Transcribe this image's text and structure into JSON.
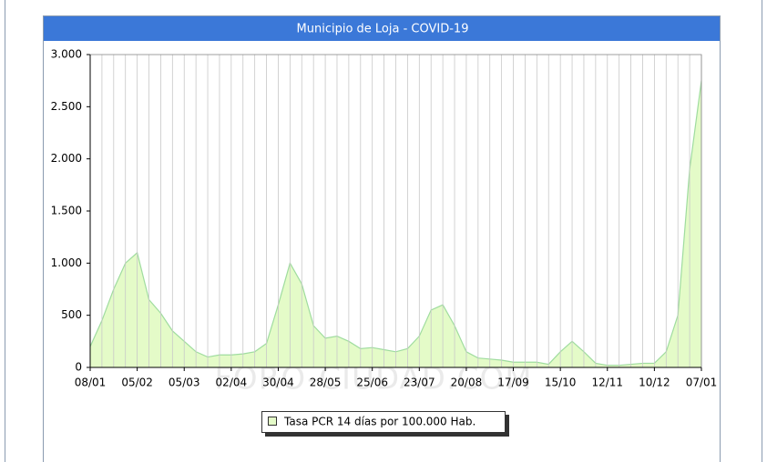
{
  "chart_data": {
    "type": "area",
    "title": "Municipio de Loja - COVID-19",
    "watermark": "FORO-CIUDAD.COM",
    "categories": [
      "08/01",
      null,
      null,
      null,
      "05/02",
      null,
      null,
      null,
      "05/03",
      null,
      null,
      null,
      "02/04",
      null,
      null,
      null,
      "30/04",
      null,
      null,
      null,
      "28/05",
      null,
      null,
      null,
      "25/06",
      null,
      null,
      null,
      "23/07",
      null,
      null,
      null,
      "20/08",
      null,
      null,
      null,
      "17/09",
      null,
      null,
      null,
      "15/10",
      null,
      null,
      null,
      "12/11",
      null,
      null,
      null,
      "10/12",
      null,
      null,
      null,
      "07/01"
    ],
    "series": [
      {
        "name": "Tasa PCR 14 días por 100.000 Hab.",
        "color": "#e4fbc8",
        "line_color": "#9fdc9f",
        "values": [
          200,
          450,
          750,
          1000,
          1100,
          650,
          520,
          350,
          250,
          150,
          100,
          120,
          120,
          130,
          150,
          230,
          600,
          1000,
          800,
          400,
          280,
          300,
          250,
          180,
          190,
          170,
          150,
          180,
          300,
          550,
          600,
          400,
          150,
          90,
          80,
          70,
          50,
          50,
          50,
          30,
          150,
          250,
          150,
          40,
          20,
          20,
          30,
          40,
          40,
          150,
          500,
          1900,
          2750
        ]
      }
    ],
    "ylim": [
      0,
      3000
    ],
    "yticks": [
      0,
      500,
      {
        "value": 1000,
        "label": "1.000"
      },
      {
        "value": 1500,
        "label": "1.500"
      },
      {
        "value": 2000,
        "label": "2.000"
      },
      {
        "value": 2500,
        "label": "2.500"
      },
      {
        "value": 3000,
        "label": "3.000"
      }
    ],
    "grid": "x",
    "legend": "bottom"
  }
}
